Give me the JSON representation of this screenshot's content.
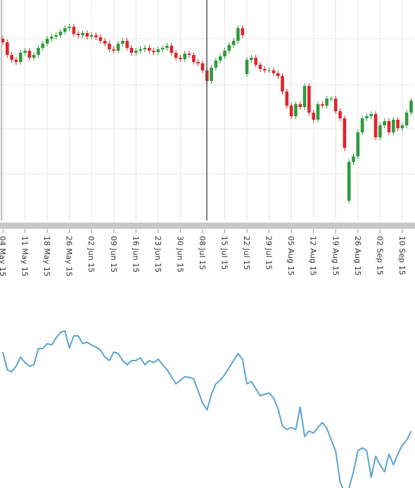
{
  "chart_data": [
    {
      "type": "candlestick",
      "categories": [
        "04 May 15",
        null,
        null,
        null,
        null,
        "11 May 15",
        null,
        null,
        null,
        null,
        "18 May 15",
        null,
        null,
        null,
        null,
        "26 May 15",
        null,
        null,
        null,
        null,
        "02 Jun 15",
        null,
        null,
        null,
        null,
        "09 Jun 15",
        null,
        null,
        null,
        null,
        "16 Jun 15",
        null,
        null,
        null,
        null,
        "23 Jun 15",
        null,
        null,
        null,
        null,
        "30 Jun 15",
        null,
        null,
        null,
        null,
        "08 Jul 15",
        null,
        null,
        null,
        null,
        "15 Jul 15",
        null,
        null,
        null,
        null,
        "22 Jul 15",
        null,
        null,
        null,
        null,
        "29 Jul 15",
        null,
        null,
        null,
        null,
        "05 Aug 15",
        null,
        null,
        null,
        null,
        "12 Aug 15",
        null,
        null,
        null,
        null,
        "19 Aug 15",
        null,
        null,
        null,
        null,
        "26 Aug 15",
        null,
        null,
        null,
        null,
        "02 Sep 15",
        null,
        null,
        null,
        null,
        "10 Sep 15",
        null,
        null
      ],
      "open": [
        258,
        253,
        235,
        228,
        225,
        238,
        241,
        231,
        235,
        245,
        251,
        258,
        261,
        263,
        268,
        273,
        275,
        265,
        263,
        266,
        261,
        263,
        260,
        255,
        251,
        243,
        241,
        251,
        255,
        245,
        238,
        241,
        243,
        245,
        241,
        239,
        243,
        245,
        248,
        238,
        231,
        229,
        237,
        235,
        225,
        223,
        213,
        198,
        217,
        227,
        233,
        241,
        249,
        255,
        273,
        208,
        228,
        231,
        221,
        215,
        213,
        213,
        209,
        205,
        183,
        163,
        148,
        165,
        161,
        191,
        153,
        143,
        165,
        163,
        173,
        173,
        155,
        145,
        28,
        83,
        91,
        125,
        145,
        148,
        151,
        118,
        135,
        141,
        125,
        143,
        131,
        135,
        153
      ],
      "high": [
        262,
        257,
        239,
        232,
        242,
        245,
        245,
        239,
        249,
        255,
        262,
        265,
        267,
        272,
        277,
        279,
        279,
        269,
        270,
        270,
        267,
        267,
        264,
        259,
        255,
        247,
        255,
        259,
        259,
        249,
        245,
        247,
        249,
        249,
        245,
        247,
        249,
        252,
        252,
        242,
        235,
        241,
        241,
        239,
        229,
        227,
        217,
        221,
        231,
        237,
        245,
        253,
        259,
        277,
        277,
        232,
        235,
        235,
        225,
        219,
        217,
        217,
        213,
        209,
        187,
        167,
        169,
        169,
        195,
        195,
        157,
        169,
        169,
        177,
        177,
        177,
        159,
        149,
        87,
        95,
        129,
        149,
        152,
        155,
        155,
        139,
        145,
        145,
        147,
        147,
        139,
        157,
        174
      ],
      "low": [
        249,
        231,
        224,
        221,
        221,
        234,
        227,
        227,
        231,
        241,
        247,
        254,
        257,
        259,
        264,
        269,
        261,
        259,
        259,
        257,
        257,
        256,
        251,
        247,
        239,
        237,
        237,
        247,
        241,
        234,
        234,
        237,
        239,
        237,
        235,
        235,
        239,
        241,
        234,
        227,
        225,
        225,
        231,
        221,
        219,
        209,
        194,
        194,
        213,
        223,
        229,
        237,
        245,
        251,
        259,
        204,
        224,
        217,
        211,
        209,
        209,
        205,
        201,
        179,
        159,
        144,
        144,
        157,
        157,
        149,
        139,
        139,
        159,
        159,
        169,
        151,
        141,
        99,
        24,
        79,
        87,
        121,
        141,
        144,
        114,
        114,
        131,
        121,
        121,
        127,
        127,
        131,
        149
      ],
      "close": [
        253,
        235,
        228,
        225,
        238,
        241,
        231,
        235,
        245,
        251,
        258,
        261,
        263,
        268,
        273,
        275,
        265,
        263,
        266,
        261,
        263,
        260,
        255,
        251,
        243,
        241,
        251,
        255,
        245,
        238,
        241,
        243,
        245,
        241,
        239,
        243,
        245,
        248,
        238,
        231,
        229,
        237,
        235,
        225,
        223,
        213,
        198,
        217,
        227,
        233,
        241,
        249,
        255,
        273,
        263,
        228,
        231,
        221,
        215,
        213,
        213,
        209,
        205,
        183,
        163,
        148,
        165,
        161,
        191,
        153,
        143,
        165,
        163,
        173,
        173,
        155,
        145,
        103,
        83,
        91,
        125,
        145,
        148,
        151,
        118,
        135,
        141,
        125,
        143,
        131,
        135,
        153,
        170
      ],
      "up_color": "#2e9a3b",
      "down_color": "#e0242a",
      "ylim": [
        0,
        313
      ],
      "yticks": [
        66,
        130,
        193,
        258
      ],
      "grid": true
    },
    {
      "type": "line",
      "values": [
        200,
        175,
        172,
        180,
        193,
        185,
        180,
        182,
        205,
        205,
        212,
        210,
        220,
        228,
        230,
        206,
        223,
        223,
        212,
        214,
        210,
        207,
        203,
        193,
        188,
        200,
        198,
        188,
        182,
        188,
        188,
        192,
        182,
        188,
        185,
        190,
        182,
        175,
        165,
        155,
        160,
        165,
        164,
        162,
        145,
        128,
        118,
        140,
        155,
        160,
        168,
        178,
        188,
        198,
        190,
        155,
        158,
        148,
        138,
        140,
        142,
        135,
        120,
        95,
        90,
        93,
        90,
        122,
        80,
        88,
        85,
        93,
        100,
        92,
        75,
        60,
        15,
        0,
        7,
        30,
        60,
        64,
        60,
        22,
        52,
        40,
        30,
        55,
        40,
        55,
        68,
        75,
        88
      ],
      "color": "#5aa4cf",
      "ylim": [
        0,
        300
      ]
    }
  ]
}
